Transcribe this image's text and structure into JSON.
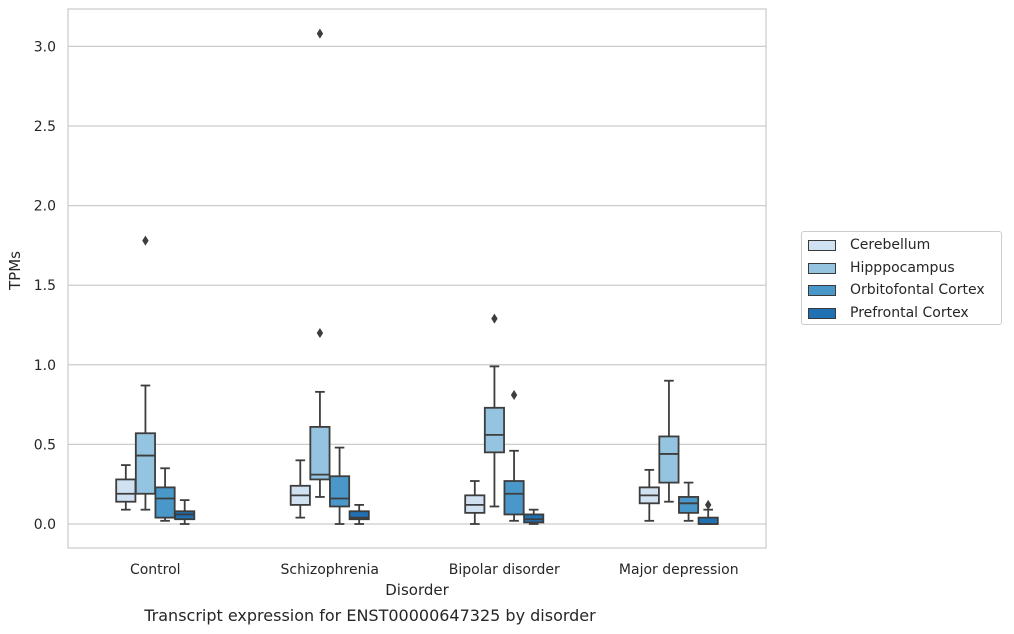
{
  "chart_data": {
    "type": "box",
    "title": "",
    "caption": "Transcript expression for ENST00000647325 by disorder",
    "xlabel": "Disorder",
    "ylabel": "TPMs",
    "categories": [
      "Control",
      "Schizophrenia",
      "Bipolar disorder",
      "Major depression"
    ],
    "ylim": [
      -0.15,
      3.25
    ],
    "yticks": [
      0.0,
      0.5,
      1.0,
      1.5,
      2.0,
      2.5,
      3.0
    ],
    "ytick_labels": [
      "0.0",
      "0.5",
      "1.0",
      "1.5",
      "2.0",
      "2.5",
      "3.0"
    ],
    "grid": "horizontal",
    "legend_position": "right",
    "series": [
      {
        "name": "Cerebellum",
        "color": "#d0e1f2",
        "boxes": [
          {
            "whislo": 0.09,
            "q1": 0.14,
            "med": 0.19,
            "q3": 0.28,
            "whishi": 0.37,
            "fliers": []
          },
          {
            "whislo": 0.04,
            "q1": 0.12,
            "med": 0.18,
            "q3": 0.24,
            "whishi": 0.4,
            "fliers": []
          },
          {
            "whislo": 0.0,
            "q1": 0.07,
            "med": 0.12,
            "q3": 0.18,
            "whishi": 0.27,
            "fliers": []
          },
          {
            "whislo": 0.02,
            "q1": 0.13,
            "med": 0.18,
            "q3": 0.23,
            "whishi": 0.34,
            "fliers": []
          }
        ]
      },
      {
        "name": "Hipppocampus",
        "color": "#94c4df",
        "boxes": [
          {
            "whislo": 0.09,
            "q1": 0.19,
            "med": 0.43,
            "q3": 0.57,
            "whishi": 0.87,
            "fliers": [
              1.78
            ]
          },
          {
            "whislo": 0.17,
            "q1": 0.28,
            "med": 0.31,
            "q3": 0.61,
            "whishi": 0.83,
            "fliers": [
              1.2,
              3.08
            ]
          },
          {
            "whislo": 0.11,
            "q1": 0.45,
            "med": 0.56,
            "q3": 0.73,
            "whishi": 0.99,
            "fliers": [
              1.29
            ]
          },
          {
            "whislo": 0.14,
            "q1": 0.26,
            "med": 0.44,
            "q3": 0.55,
            "whishi": 0.9,
            "fliers": []
          }
        ]
      },
      {
        "name": "Orbitofontal Cortex",
        "color": "#4a98c9",
        "boxes": [
          {
            "whislo": 0.02,
            "q1": 0.04,
            "med": 0.16,
            "q3": 0.23,
            "whishi": 0.35,
            "fliers": []
          },
          {
            "whislo": 0.0,
            "q1": 0.11,
            "med": 0.16,
            "q3": 0.3,
            "whishi": 0.48,
            "fliers": []
          },
          {
            "whislo": 0.02,
            "q1": 0.06,
            "med": 0.19,
            "q3": 0.27,
            "whishi": 0.46,
            "fliers": [
              0.81
            ]
          },
          {
            "whislo": 0.02,
            "q1": 0.07,
            "med": 0.13,
            "q3": 0.17,
            "whishi": 0.26,
            "fliers": []
          }
        ]
      },
      {
        "name": "Prefrontal Cortex",
        "color": "#2070b4",
        "boxes": [
          {
            "whislo": 0.0,
            "q1": 0.03,
            "med": 0.06,
            "q3": 0.08,
            "whishi": 0.15,
            "fliers": []
          },
          {
            "whislo": 0.0,
            "q1": 0.03,
            "med": 0.04,
            "q3": 0.08,
            "whishi": 0.12,
            "fliers": []
          },
          {
            "whislo": 0.0,
            "q1": 0.01,
            "med": 0.03,
            "q3": 0.06,
            "whishi": 0.09,
            "fliers": []
          },
          {
            "whislo": 0.0,
            "q1": 0.0,
            "med": 0.0,
            "q3": 0.04,
            "whishi": 0.09,
            "fliers": [
              0.12
            ]
          }
        ]
      }
    ]
  },
  "legend": {
    "items": [
      {
        "label": "Cerebellum",
        "color": "#d0e1f2"
      },
      {
        "label": "Hipppocampus",
        "color": "#94c4df"
      },
      {
        "label": "Orbitofontal Cortex",
        "color": "#4a98c9"
      },
      {
        "label": "Prefrontal Cortex",
        "color": "#2070b4"
      }
    ]
  }
}
